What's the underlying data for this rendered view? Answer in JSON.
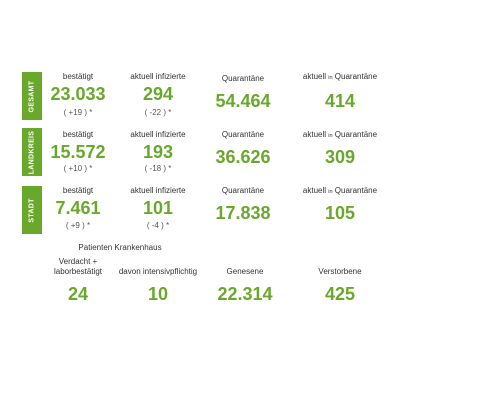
{
  "sections": [
    {
      "tab": "GESAMT",
      "confirmed_label": "bestätigt",
      "confirmed_value": "23.033",
      "confirmed_change": "( +19 ) *",
      "infected_label": "aktuell infizierte",
      "infected_value": "294",
      "infected_change": "( -22 ) *",
      "quarantine_label": "Quarantäne",
      "quarantine_value": "54.464",
      "current_quarantine_pre": "aktuell",
      "current_quarantine_in": "in",
      "current_quarantine_post": "Quarantäne",
      "current_quarantine_value": "414"
    },
    {
      "tab": "LANDKREIS",
      "confirmed_label": "bestätigt",
      "confirmed_value": "15.572",
      "confirmed_change": "( +10 ) *",
      "infected_label": "aktuell infizierte",
      "infected_value": "193",
      "infected_change": "( -18 ) *",
      "quarantine_label": "Quarantäne",
      "quarantine_value": "36.626",
      "current_quarantine_pre": "aktuell",
      "current_quarantine_in": "in",
      "current_quarantine_post": "Quarantäne",
      "current_quarantine_value": "309"
    },
    {
      "tab": "STADT",
      "confirmed_label": "bestätigt",
      "confirmed_value": "7.461",
      "confirmed_change": "( +9 ) *",
      "infected_label": "aktuell infizierte",
      "infected_value": "101",
      "infected_change": "( -4 ) *",
      "quarantine_label": "Quarantäne",
      "quarantine_value": "17.838",
      "current_quarantine_pre": "aktuell",
      "current_quarantine_in": "in",
      "current_quarantine_post": "Quarantäne",
      "current_quarantine_value": "105"
    }
  ],
  "hospital": {
    "title": "Patienten Krankenhaus",
    "suspected_label_line1": "Verdacht +",
    "suspected_label_line2": "laborbestätigt",
    "suspected_value": "24",
    "intensive_label": "davon intensivpflichtig",
    "intensive_value": "10"
  },
  "totals": {
    "recovered_label": "Genesene",
    "recovered_value": "22.314",
    "deceased_label": "Verstorbene",
    "deceased_value": "425"
  },
  "colors": {
    "accent": "#6aa82c",
    "label": "#333333",
    "change": "#555555"
  }
}
